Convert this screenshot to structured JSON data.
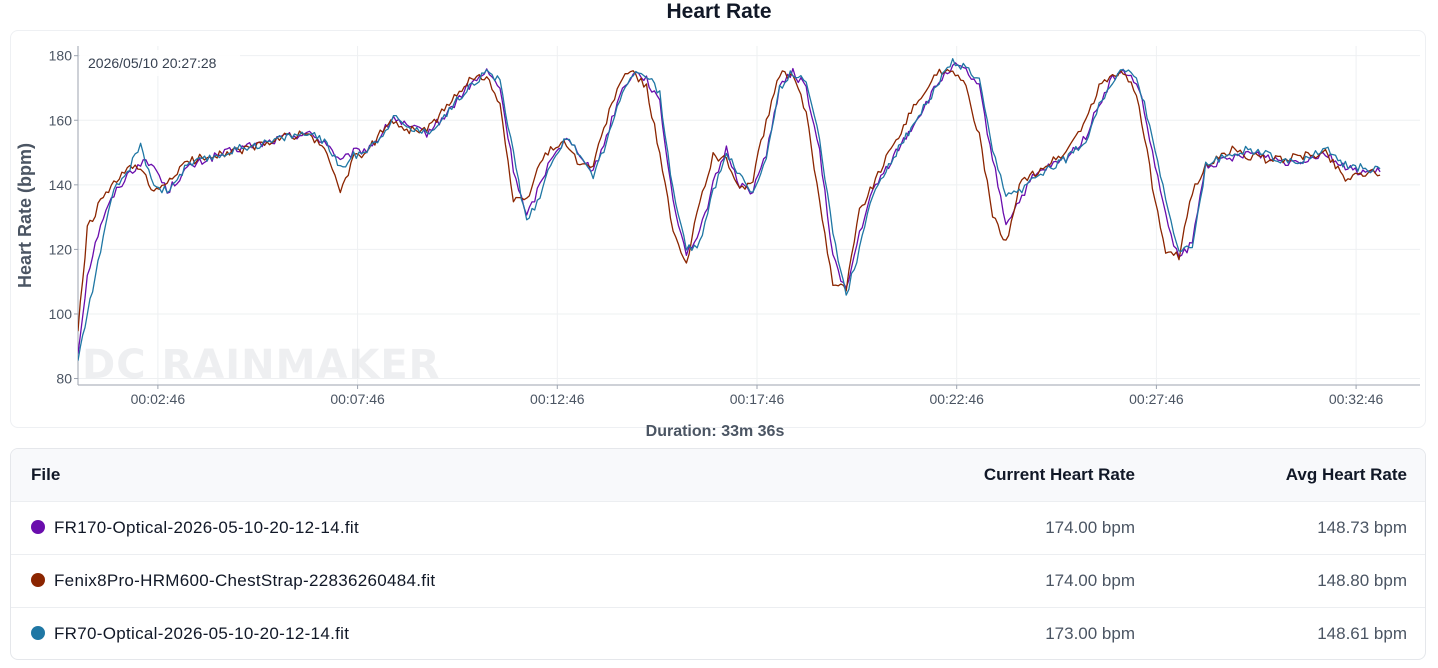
{
  "chart_data": {
    "type": "line",
    "title": "Heart Rate",
    "ylabel": "Heart Rate (bpm)",
    "xlabel": "",
    "ylim": [
      78,
      183
    ],
    "xlim_seconds": [
      46,
      2062
    ],
    "y_ticks": [
      80,
      100,
      120,
      140,
      160,
      180
    ],
    "x_ticks": [
      "00:02:46",
      "00:07:46",
      "00:12:46",
      "00:17:46",
      "00:22:46",
      "00:27:46",
      "00:32:46"
    ],
    "x_unit": "elapsed time (hh:mm:ss)",
    "grid": true,
    "cursor_label": "2026/05/10 20:27:28",
    "watermark": "DC RAINMAKER",
    "series": [
      {
        "color": "#6a0dad",
        "x": [
          "00:00:46",
          "00:01:00",
          "00:01:20",
          "00:01:40",
          "00:02:00",
          "00:02:20",
          "00:02:40",
          "00:03:00",
          "00:03:30",
          "00:04:00",
          "00:04:30",
          "00:05:00",
          "00:05:30",
          "00:06:00",
          "00:06:30",
          "00:07:00",
          "00:07:20",
          "00:07:40",
          "00:08:00",
          "00:08:20",
          "00:08:40",
          "00:09:00",
          "00:09:30",
          "00:10:00",
          "00:10:30",
          "00:11:00",
          "00:11:20",
          "00:11:40",
          "00:12:00",
          "00:12:20",
          "00:12:40",
          "00:13:00",
          "00:13:20",
          "00:13:40",
          "00:14:00",
          "00:14:20",
          "00:14:40",
          "00:15:00",
          "00:15:20",
          "00:15:40",
          "00:16:00",
          "00:16:20",
          "00:16:40",
          "00:17:00",
          "00:17:20",
          "00:17:40",
          "00:18:00",
          "00:18:20",
          "00:18:40",
          "00:19:00",
          "00:19:20",
          "00:19:40",
          "00:20:00",
          "00:20:20",
          "00:20:40",
          "00:21:00",
          "00:21:30",
          "00:22:00",
          "00:22:20",
          "00:22:40",
          "00:23:00",
          "00:23:20",
          "00:23:40",
          "00:24:00",
          "00:24:20",
          "00:24:40",
          "00:25:00",
          "00:25:30",
          "00:26:00",
          "00:26:20",
          "00:26:40",
          "00:27:00",
          "00:27:20",
          "00:27:40",
          "00:28:00",
          "00:28:20",
          "00:28:40",
          "00:29:00",
          "00:29:20",
          "00:29:40",
          "00:30:00",
          "00:30:30",
          "00:31:00",
          "00:31:30",
          "00:32:00",
          "00:32:30",
          "00:33:00",
          "00:33:22"
        ],
        "values": [
          88,
          112,
          128,
          137,
          143,
          147,
          146,
          138,
          145,
          148,
          150,
          152,
          153,
          155,
          156,
          153,
          147,
          150,
          151,
          155,
          161,
          158,
          156,
          162,
          170,
          175,
          170,
          145,
          130,
          140,
          150,
          154,
          150,
          144,
          155,
          168,
          175,
          173,
          165,
          135,
          119,
          125,
          140,
          151,
          140,
          138,
          150,
          170,
          175,
          170,
          150,
          118,
          107,
          125,
          138,
          145,
          155,
          165,
          172,
          177,
          175,
          170,
          148,
          128,
          135,
          142,
          145,
          148,
          155,
          165,
          173,
          175,
          170,
          150,
          130,
          117,
          122,
          146,
          147,
          148,
          150,
          149,
          147,
          148,
          150,
          145,
          144,
          144
        ]
      },
      {
        "color": "#8b2500",
        "x": [
          "00:00:46",
          "00:01:00",
          "00:01:20",
          "00:01:40",
          "00:02:00",
          "00:02:20",
          "00:02:40",
          "00:03:00",
          "00:03:30",
          "00:04:00",
          "00:04:30",
          "00:05:00",
          "00:05:30",
          "00:06:00",
          "00:06:30",
          "00:07:00",
          "00:07:20",
          "00:07:40",
          "00:08:00",
          "00:08:20",
          "00:08:40",
          "00:09:00",
          "00:09:30",
          "00:10:00",
          "00:10:30",
          "00:11:00",
          "00:11:20",
          "00:11:40",
          "00:12:00",
          "00:12:20",
          "00:12:40",
          "00:13:00",
          "00:13:20",
          "00:13:40",
          "00:14:00",
          "00:14:20",
          "00:14:40",
          "00:15:00",
          "00:15:20",
          "00:15:40",
          "00:16:00",
          "00:16:20",
          "00:16:40",
          "00:17:00",
          "00:17:20",
          "00:17:40",
          "00:18:00",
          "00:18:20",
          "00:18:40",
          "00:19:00",
          "00:19:20",
          "00:19:40",
          "00:20:00",
          "00:20:20",
          "00:20:40",
          "00:21:00",
          "00:21:30",
          "00:22:00",
          "00:22:20",
          "00:22:40",
          "00:23:00",
          "00:23:20",
          "00:23:40",
          "00:24:00",
          "00:24:20",
          "00:24:40",
          "00:25:00",
          "00:25:30",
          "00:26:00",
          "00:26:20",
          "00:26:40",
          "00:27:00",
          "00:27:20",
          "00:27:40",
          "00:28:00",
          "00:28:20",
          "00:28:40",
          "00:29:00",
          "00:29:20",
          "00:29:40",
          "00:30:00",
          "00:30:30",
          "00:31:00",
          "00:31:30",
          "00:32:00",
          "00:32:30",
          "00:33:00",
          "00:33:22"
        ],
        "values": [
          95,
          126,
          135,
          140,
          145,
          145,
          137,
          141,
          147,
          149,
          150,
          151,
          153,
          155,
          156,
          150,
          138,
          148,
          150,
          156,
          160,
          157,
          157,
          164,
          172,
          174,
          165,
          135,
          135,
          147,
          152,
          153,
          146,
          146,
          160,
          172,
          175,
          170,
          150,
          125,
          115,
          135,
          149,
          148,
          138,
          142,
          160,
          174,
          174,
          162,
          135,
          110,
          108,
          132,
          140,
          148,
          160,
          170,
          175,
          176,
          170,
          155,
          130,
          122,
          140,
          143,
          146,
          150,
          160,
          170,
          174,
          175,
          165,
          140,
          118,
          118,
          138,
          146,
          148,
          151,
          149,
          148,
          148,
          149,
          150,
          142,
          144,
          143
        ]
      },
      {
        "color": "#1f77a4",
        "x": [
          "00:00:46",
          "00:01:00",
          "00:01:20",
          "00:01:40",
          "00:02:00",
          "00:02:20",
          "00:02:40",
          "00:03:00",
          "00:03:30",
          "00:04:00",
          "00:04:30",
          "00:05:00",
          "00:05:30",
          "00:06:00",
          "00:06:30",
          "00:07:00",
          "00:07:20",
          "00:07:40",
          "00:08:00",
          "00:08:20",
          "00:08:40",
          "00:09:00",
          "00:09:30",
          "00:10:00",
          "00:10:30",
          "00:11:00",
          "00:11:20",
          "00:11:40",
          "00:12:00",
          "00:12:20",
          "00:12:40",
          "00:13:00",
          "00:13:20",
          "00:13:40",
          "00:14:00",
          "00:14:20",
          "00:14:40",
          "00:15:00",
          "00:15:20",
          "00:15:40",
          "00:16:00",
          "00:16:20",
          "00:16:40",
          "00:17:00",
          "00:17:20",
          "00:17:40",
          "00:18:00",
          "00:18:20",
          "00:18:40",
          "00:19:00",
          "00:19:20",
          "00:19:40",
          "00:20:00",
          "00:20:20",
          "00:20:40",
          "00:21:00",
          "00:21:30",
          "00:22:00",
          "00:22:20",
          "00:22:40",
          "00:23:00",
          "00:23:20",
          "00:23:40",
          "00:24:00",
          "00:24:20",
          "00:24:40",
          "00:25:00",
          "00:25:30",
          "00:26:00",
          "00:26:20",
          "00:26:40",
          "00:27:00",
          "00:27:20",
          "00:27:40",
          "00:28:00",
          "00:28:20",
          "00:28:40",
          "00:29:00",
          "00:29:20",
          "00:29:40",
          "00:30:00",
          "00:30:30",
          "00:31:00",
          "00:31:30",
          "00:32:00",
          "00:32:30",
          "00:33:00",
          "00:33:22"
        ],
        "values": [
          86,
          100,
          120,
          138,
          144,
          152,
          140,
          138,
          146,
          148,
          150,
          152,
          153,
          155,
          156,
          153,
          145,
          149,
          151,
          155,
          161,
          158,
          156,
          162,
          170,
          175,
          172,
          150,
          128,
          137,
          149,
          154,
          150,
          143,
          153,
          167,
          175,
          174,
          168,
          138,
          120,
          122,
          138,
          150,
          143,
          137,
          149,
          170,
          175,
          171,
          155,
          125,
          106,
          120,
          137,
          145,
          155,
          165,
          172,
          178,
          176,
          172,
          150,
          137,
          138,
          141,
          145,
          148,
          154,
          165,
          172,
          176,
          171,
          155,
          135,
          120,
          120,
          146,
          148,
          149,
          151,
          150,
          147,
          148,
          151,
          146,
          145,
          145
        ]
      }
    ]
  },
  "duration_label": "Duration: 33m 36s",
  "table": {
    "headers": {
      "file": "File",
      "current": "Current Heart Rate",
      "avg": "Avg Heart Rate"
    },
    "rows": [
      {
        "color": "#6a0dad",
        "file": "FR170-Optical-2026-05-10-20-12-14.fit",
        "current": "174.00 bpm",
        "avg": "148.73 bpm"
      },
      {
        "color": "#8b2500",
        "file": "Fenix8Pro-HRM600-ChestStrap-22836260484.fit",
        "current": "174.00 bpm",
        "avg": "148.80 bpm"
      },
      {
        "color": "#1f77a4",
        "file": "FR70-Optical-2026-05-10-20-12-14.fit",
        "current": "173.00 bpm",
        "avg": "148.61 bpm"
      }
    ]
  }
}
